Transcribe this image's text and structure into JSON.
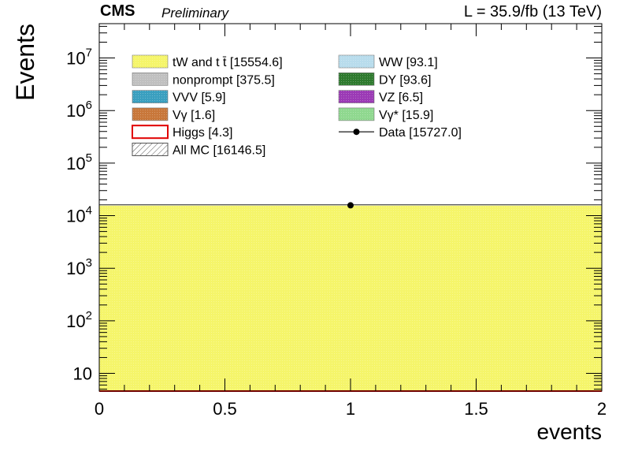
{
  "header": {
    "experiment": "CMS",
    "status": "Preliminary",
    "lumi": "L = 35.9/fb (13 TeV)"
  },
  "chart_data": {
    "type": "bar",
    "stacked": true,
    "x_scale": "linear",
    "y_scale": "log",
    "xlabel": "events",
    "ylabel": "Events",
    "xlim": [
      0,
      2
    ],
    "ylim": [
      4.6,
      45000000
    ],
    "x_ticks": [
      {
        "value": 0,
        "label": "0"
      },
      {
        "value": 0.5,
        "label": "0.5"
      },
      {
        "value": 1,
        "label": "1"
      },
      {
        "value": 1.5,
        "label": "1.5"
      },
      {
        "value": 2,
        "label": "2"
      }
    ],
    "y_ticks": [
      {
        "value": 10,
        "base": "10",
        "exp": ""
      },
      {
        "value": 100,
        "base": "10",
        "exp": "2"
      },
      {
        "value": 1000,
        "base": "10",
        "exp": "3"
      },
      {
        "value": 10000,
        "base": "10",
        "exp": "4"
      },
      {
        "value": 100000,
        "base": "10",
        "exp": "5"
      },
      {
        "value": 1000000,
        "base": "10",
        "exp": "6"
      },
      {
        "value": 10000000,
        "base": "10",
        "exp": "7"
      }
    ],
    "grid": false,
    "legend_position": "top",
    "bin": {
      "low": 0,
      "high": 2
    },
    "series": [
      {
        "name": "tW and t t̄ [15554.6]",
        "value": 15554.6,
        "color": "#f5f56a",
        "hatch": "dots"
      },
      {
        "name": "nonprompt [375.5]",
        "value": 375.5,
        "color": "#c0c0c0",
        "hatch": "dots"
      },
      {
        "name": "VVV [5.9]",
        "value": 5.9,
        "color": "#3a9fbf",
        "hatch": "dots"
      },
      {
        "name": "Vγ [1.6]",
        "value": 1.6,
        "color": "#c8773a",
        "hatch": "dots"
      },
      {
        "name": "WW [93.1]",
        "value": 93.1,
        "color": "#b8dcec",
        "hatch": "dots"
      },
      {
        "name": "DY [93.6]",
        "value": 93.6,
        "color": "#2e7a2e",
        "hatch": "dots"
      },
      {
        "name": "VZ [6.5]",
        "value": 6.5,
        "color": "#9b3ab5",
        "hatch": "dots"
      },
      {
        "name": "Vγ* [15.9]",
        "value": 15.9,
        "color": "#8fd88f",
        "hatch": "dots"
      }
    ],
    "higgs": {
      "name": "Higgs [4.3]",
      "value": 4.3,
      "color": "#e00000"
    },
    "all_mc": {
      "name": "All MC [16146.5]",
      "value": 16146.5
    },
    "data": {
      "name": "Data [15727.0]",
      "points": [
        {
          "x": 1,
          "y": 15727.0
        }
      ]
    },
    "legend_left": [
      {
        "label": "tW and t t̄ [15554.6]",
        "key": "fill",
        "color": "#f5f56a"
      },
      {
        "label": "nonprompt [375.5]",
        "key": "fill",
        "color": "#c0c0c0"
      },
      {
        "label": "VVV [5.9]",
        "key": "fill",
        "color": "#3a9fbf"
      },
      {
        "label": "Vγ [1.6]",
        "key": "fill",
        "color": "#c8773a"
      },
      {
        "label": "Higgs [4.3]",
        "key": "line-box",
        "color": "#e00000"
      },
      {
        "label": "All MC [16146.5]",
        "key": "hatch",
        "color": "#555555"
      }
    ],
    "legend_right": [
      {
        "label": "WW [93.1]",
        "key": "fill",
        "color": "#b8dcec"
      },
      {
        "label": "DY [93.6]",
        "key": "fill",
        "color": "#2e7a2e"
      },
      {
        "label": "VZ [6.5]",
        "key": "fill",
        "color": "#9b3ab5"
      },
      {
        "label": "Vγ* [15.9]",
        "key": "fill",
        "color": "#8fd88f"
      },
      {
        "label": "Data [15727.0]",
        "key": "marker",
        "color": "#000000"
      }
    ]
  }
}
